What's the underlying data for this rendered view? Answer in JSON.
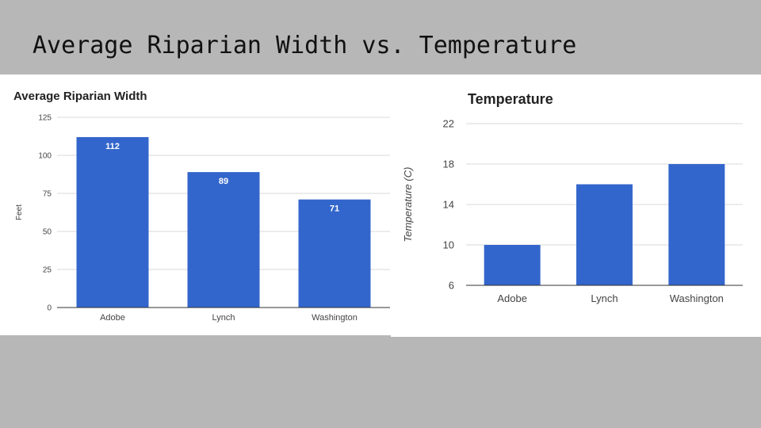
{
  "slide": {
    "title": "Average Riparian Width vs. Temperature"
  },
  "colors": {
    "bar": "#3366cc",
    "background": "#b7b7b7",
    "panel": "#ffffff"
  },
  "chart_data": [
    {
      "type": "bar",
      "title": "Average Riparian Width",
      "xlabel": "",
      "ylabel": "Feet",
      "categories": [
        "Adobe",
        "Lynch",
        "Washington"
      ],
      "values": [
        112,
        89,
        71
      ],
      "data_labels": [
        "112",
        "89",
        "71"
      ],
      "ylim": [
        0,
        125
      ],
      "yticks": [
        0,
        25,
        50,
        75,
        100,
        125
      ],
      "grid": true,
      "legend": "none"
    },
    {
      "type": "bar",
      "title": "Temperature",
      "xlabel": "",
      "ylabel": "Temperature (C)",
      "categories": [
        "Adobe",
        "Lynch",
        "Washington"
      ],
      "values": [
        10,
        16,
        18
      ],
      "ylim": [
        6,
        22
      ],
      "yticks": [
        6,
        10,
        14,
        18,
        22
      ],
      "grid": true,
      "legend": "none"
    }
  ]
}
